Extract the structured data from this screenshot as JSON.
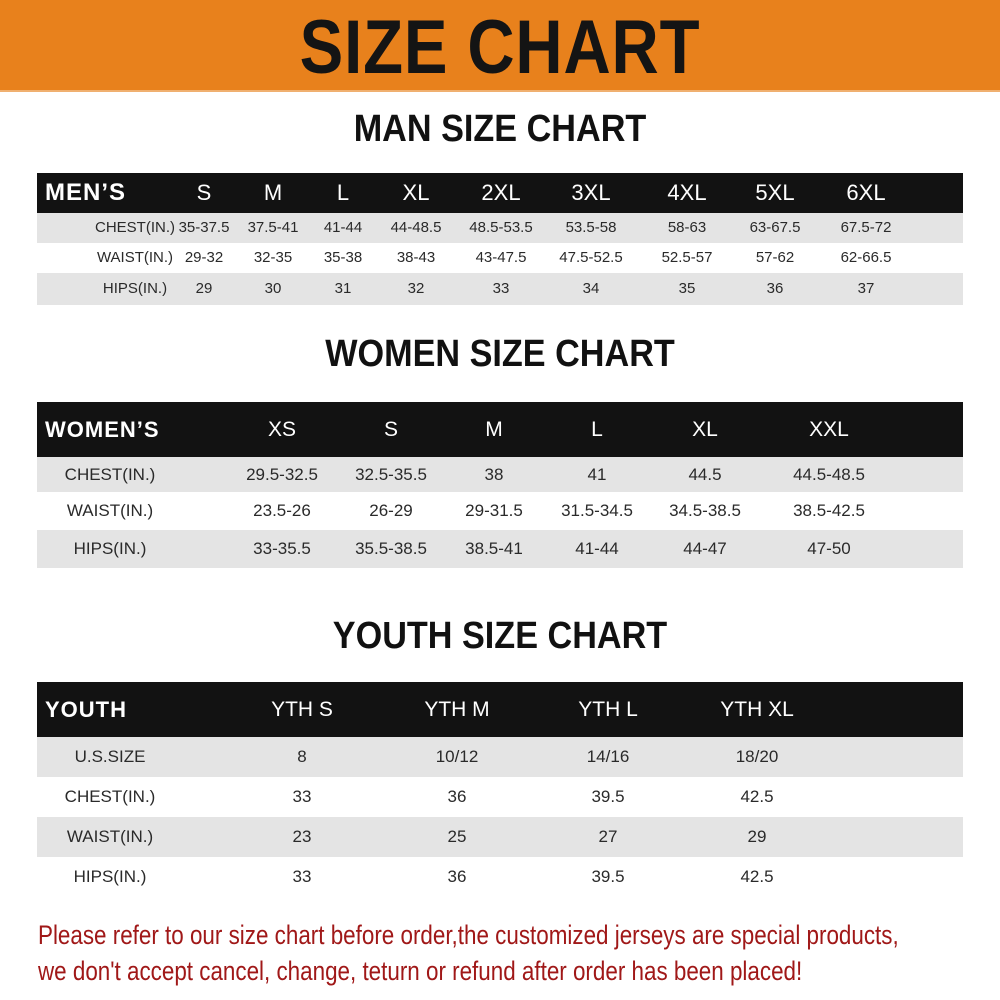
{
  "banner": {
    "title": "SIZE CHART",
    "color": "#e8811c"
  },
  "men": {
    "title": "MAN SIZE CHART",
    "header": "MEN’S",
    "sizes": [
      "S",
      "M",
      "L",
      "XL",
      "2XL",
      "3XL",
      "4XL",
      "5XL",
      "6XL"
    ],
    "rows": [
      {
        "label": "CHEST(IN.)",
        "values": [
          "35-37.5",
          "37.5-41",
          "41-44",
          "44-48.5",
          "48.5-53.5",
          "53.5-58",
          "58-63",
          "63-67.5",
          "67.5-72"
        ]
      },
      {
        "label": "WAIST(IN.)",
        "values": [
          "29-32",
          "32-35",
          "35-38",
          "38-43",
          "43-47.5",
          "47.5-52.5",
          "52.5-57",
          "57-62",
          "62-66.5"
        ]
      },
      {
        "label": "HIPS(IN.)",
        "values": [
          "29",
          "30",
          "31",
          "32",
          "33",
          "34",
          "35",
          "36",
          "37"
        ]
      }
    ]
  },
  "women": {
    "title": "WOMEN SIZE CHART",
    "header": "WOMEN’S",
    "sizes": [
      "XS",
      "S",
      "M",
      "L",
      "XL",
      "XXL"
    ],
    "rows": [
      {
        "label": "CHEST(IN.)",
        "values": [
          "29.5-32.5",
          "32.5-35.5",
          "38",
          "41",
          "44.5",
          "44.5-48.5"
        ]
      },
      {
        "label": "WAIST(IN.)",
        "values": [
          "23.5-26",
          "26-29",
          "29-31.5",
          "31.5-34.5",
          "34.5-38.5",
          "38.5-42.5"
        ]
      },
      {
        "label": "HIPS(IN.)",
        "values": [
          "33-35.5",
          "35.5-38.5",
          "38.5-41",
          "41-44",
          "44-47",
          "47-50"
        ]
      }
    ]
  },
  "youth": {
    "title": "YOUTH SIZE CHART",
    "header": "YOUTH",
    "sizes": [
      "YTH S",
      "YTH M",
      "YTH L",
      "YTH XL"
    ],
    "rows": [
      {
        "label": "U.S.SIZE",
        "values": [
          "8",
          "10/12",
          "14/16",
          "18/20"
        ]
      },
      {
        "label": "CHEST(IN.)",
        "values": [
          "33",
          "36",
          "39.5",
          "42.5"
        ]
      },
      {
        "label": "WAIST(IN.)",
        "values": [
          "23",
          "25",
          "27",
          "29"
        ]
      },
      {
        "label": "HIPS(IN.)",
        "values": [
          "33",
          "36",
          "39.5",
          "42.5"
        ]
      }
    ]
  },
  "notice": {
    "line1": "Please refer to our size chart before order,the customized jerseys are special products,",
    "line2": "we don't accept cancel, change, teturn or refund after order has been placed!",
    "color": "#a01818"
  }
}
